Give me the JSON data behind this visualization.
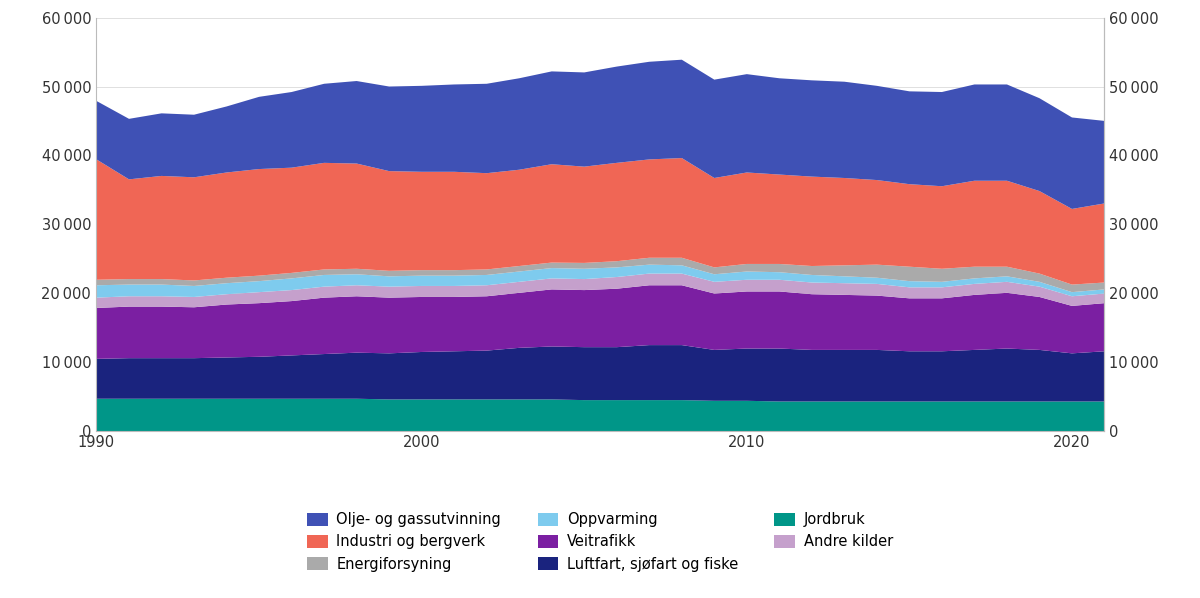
{
  "years": [
    1990,
    1991,
    1992,
    1993,
    1994,
    1995,
    1996,
    1997,
    1998,
    1999,
    2000,
    2001,
    2002,
    2003,
    2004,
    2005,
    2006,
    2007,
    2008,
    2009,
    2010,
    2011,
    2012,
    2013,
    2014,
    2015,
    2016,
    2017,
    2018,
    2019,
    2020,
    2021
  ],
  "series": {
    "Jordbruk": [
      4700,
      4700,
      4700,
      4700,
      4700,
      4700,
      4700,
      4700,
      4700,
      4600,
      4600,
      4600,
      4600,
      4600,
      4600,
      4500,
      4500,
      4500,
      4500,
      4400,
      4400,
      4300,
      4300,
      4300,
      4300,
      4300,
      4300,
      4300,
      4300,
      4300,
      4300,
      4300
    ],
    "Luftfart, sjøfart og fiske": [
      5800,
      5900,
      5900,
      5900,
      6000,
      6100,
      6300,
      6500,
      6700,
      6700,
      6900,
      7000,
      7100,
      7500,
      7700,
      7700,
      7700,
      8000,
      8000,
      7400,
      7600,
      7700,
      7500,
      7500,
      7500,
      7300,
      7300,
      7500,
      7700,
      7500,
      7000,
      7300
    ],
    "Veitrafikk": [
      7400,
      7500,
      7500,
      7400,
      7700,
      7800,
      7900,
      8200,
      8200,
      8100,
      8000,
      7900,
      7900,
      8000,
      8300,
      8300,
      8500,
      8700,
      8700,
      8200,
      8300,
      8300,
      8100,
      8000,
      7900,
      7700,
      7700,
      8000,
      8100,
      7700,
      6900,
      7000
    ],
    "Andre kilder": [
      1500,
      1500,
      1500,
      1500,
      1500,
      1600,
      1600,
      1600,
      1600,
      1600,
      1600,
      1600,
      1600,
      1600,
      1600,
      1600,
      1700,
      1700,
      1700,
      1700,
      1700,
      1700,
      1700,
      1700,
      1700,
      1600,
      1600,
      1600,
      1600,
      1500,
      1400,
      1400
    ],
    "Oppvarming": [
      1800,
      1700,
      1700,
      1600,
      1600,
      1600,
      1700,
      1700,
      1600,
      1500,
      1500,
      1500,
      1500,
      1500,
      1500,
      1500,
      1400,
      1300,
      1200,
      1100,
      1200,
      1100,
      1100,
      1000,
      900,
      900,
      800,
      800,
      800,
      700,
      600,
      600
    ],
    "Energiforsyning": [
      800,
      800,
      800,
      800,
      800,
      800,
      800,
      800,
      800,
      800,
      800,
      800,
      800,
      800,
      800,
      850,
      900,
      1000,
      1100,
      1000,
      1100,
      1200,
      1300,
      1600,
      1900,
      2100,
      1900,
      1700,
      1400,
      1200,
      1100,
      1000
    ],
    "Industri og bergverk": [
      17500,
      14500,
      15000,
      15000,
      15300,
      15500,
      15300,
      15500,
      15300,
      14500,
      14300,
      14300,
      14000,
      14000,
      14300,
      14000,
      14300,
      14300,
      14500,
      13000,
      13300,
      13000,
      13000,
      12700,
      12300,
      12000,
      12000,
      12500,
      12500,
      12000,
      11000,
      11500
    ],
    "Olje- og gassutvinning": [
      8500,
      8800,
      9100,
      9100,
      9600,
      10500,
      11000,
      11500,
      12000,
      12300,
      12500,
      12700,
      13000,
      13300,
      13500,
      13700,
      14000,
      14200,
      14300,
      14300,
      14300,
      14000,
      14000,
      14000,
      13700,
      13500,
      13700,
      14000,
      14000,
      13500,
      13300,
      12000
    ]
  },
  "colors": {
    "Jordbruk": "#009688",
    "Luftfart, sjøfart og fiske": "#1a237e",
    "Veitrafikk": "#7b1fa2",
    "Andre kilder": "#c5a0cc",
    "Oppvarming": "#7ecbee",
    "Energiforsyning": "#aaaaaa",
    "Industri og bergverk": "#f06655",
    "Olje- og gassutvinning": "#3f51b5"
  },
  "stack_order": [
    "Jordbruk",
    "Luftfart, sjøfart og fiske",
    "Veitrafikk",
    "Andre kilder",
    "Oppvarming",
    "Energiforsyning",
    "Industri og bergverk",
    "Olje- og gassutvinning"
  ],
  "legend_order": [
    "Olje- og gassutvinning",
    "Industri og bergverk",
    "Energiforsyning",
    "Oppvarming",
    "Veitrafikk",
    "Luftfart, sjøfart og fiske",
    "Jordbruk",
    "Andre kilder"
  ],
  "ylim": [
    0,
    60000
  ],
  "yticks": [
    0,
    10000,
    20000,
    30000,
    40000,
    50000,
    60000
  ],
  "xticks": [
    1990,
    2000,
    2010,
    2020
  ],
  "xlim": [
    1990,
    2021
  ],
  "background_color": "#ffffff"
}
